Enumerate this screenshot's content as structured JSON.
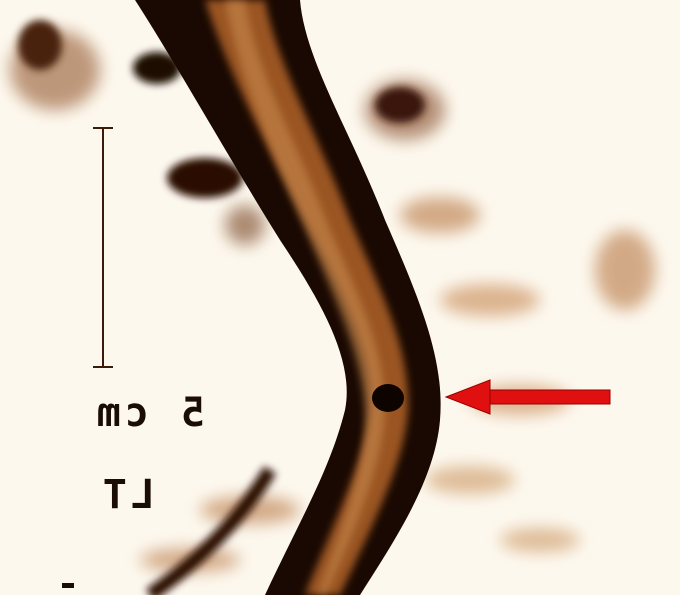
{
  "image": {
    "scale_label": "5 cm",
    "side_label": "LT"
  }
}
